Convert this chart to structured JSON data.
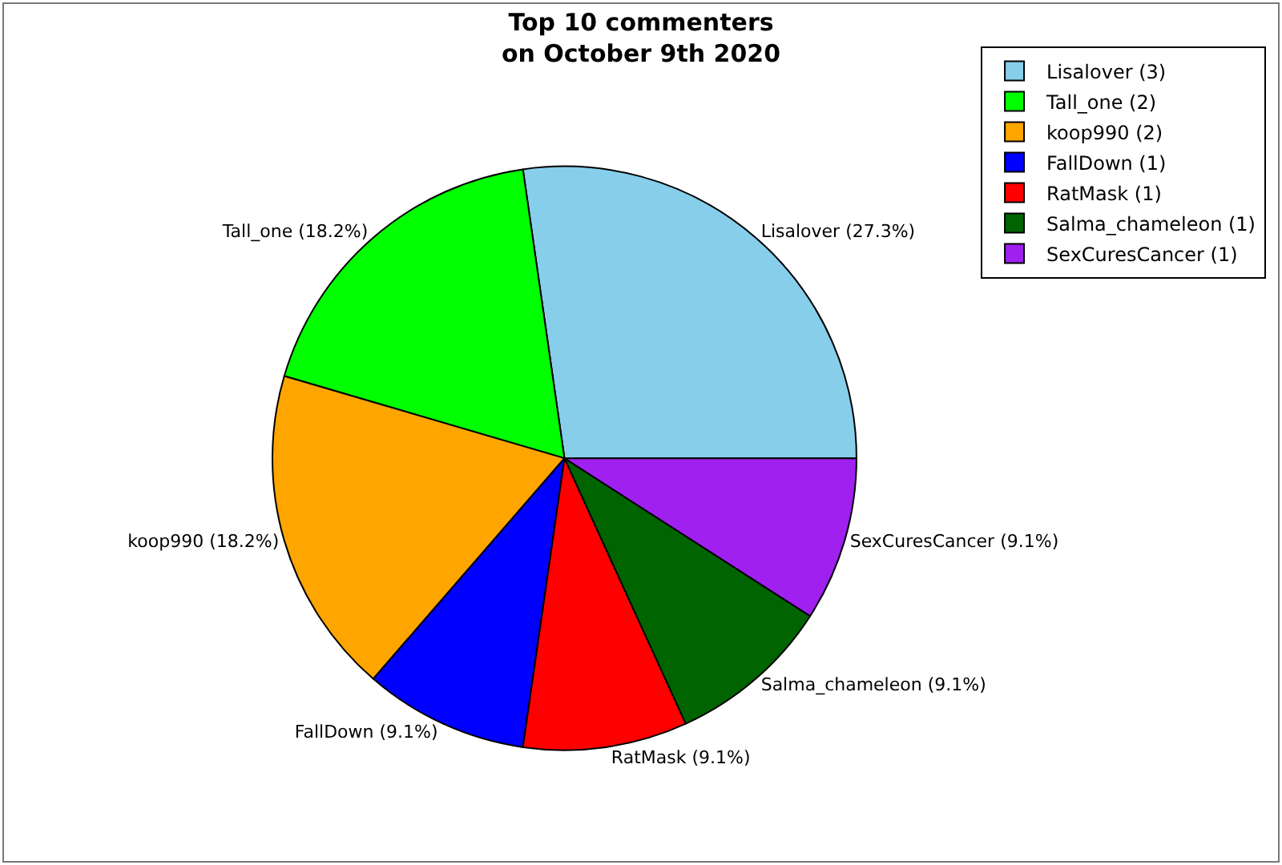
{
  "chart_data": {
    "type": "pie",
    "title": "Top 10 commenters\non October 9th 2020",
    "categories": [
      "Lisalover (3)",
      "Tall_one (2)",
      "koop990 (2)",
      "FallDown (1)",
      "RatMask (1)",
      "Salma_chameleon (1)",
      "SexCuresCancer (1)"
    ],
    "values": [
      27.3,
      18.2,
      18.2,
      9.1,
      9.1,
      9.1,
      9.1
    ],
    "value_labels": [
      "Lisalover (27.3%)",
      "Tall_one (18.2%)",
      "koop990 (18.2%)",
      "FallDown (9.1%)",
      "RatMask (9.1%)",
      "Salma_chameleon (9.1%)",
      "SexCuresCancer (9.1%)"
    ],
    "colors": [
      "#87ceeb",
      "#00ff00",
      "#ffa500",
      "#0000ff",
      "#ff0000",
      "#006400",
      "#a020f0"
    ],
    "legend": "top right"
  }
}
